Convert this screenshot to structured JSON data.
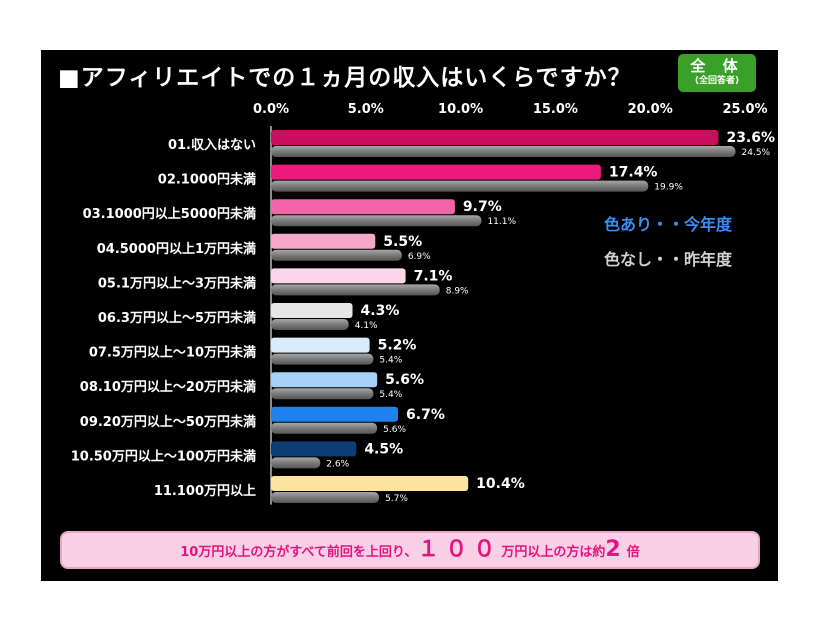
{
  "title": "■アフィリエイトでの１ヵ月の収入はいくらですか？",
  "badge": {
    "main": "全 体",
    "sub": "(全回答者)"
  },
  "legend": {
    "this_year": "色あり・・今年度",
    "last_year": "色なし・・昨年度"
  },
  "footer": {
    "part1": "10万円以上の方がすべて前回を上回り、",
    "part2": "１００",
    "part3": "万円以上の方は約",
    "part4": "2",
    "part5": "倍"
  },
  "chart_data": {
    "type": "bar",
    "orientation": "horizontal",
    "title": "■アフィリエイトでの１ヵ月の収入はいくらですか？",
    "xlim": [
      0,
      25
    ],
    "x_ticks": [
      "0.0%",
      "5.0%",
      "10.0%",
      "15.0%",
      "20.0%",
      "25.0%"
    ],
    "categories": [
      "01.収入はない",
      "02.1000円未満",
      "03.1000円以上5000円未満",
      "04.5000円以上1万円未満",
      "05.1万円以上～3万円未満",
      "06.3万円以上～5万円未満",
      "07.5万円以上～10万円未満",
      "08.10万円以上～20万円未満",
      "09.20万円以上～50万円未満",
      "10.50万円以上～100万円未満",
      "11.100万円以上"
    ],
    "series": [
      {
        "name": "今年度",
        "values": [
          23.6,
          17.4,
          9.7,
          5.5,
          7.1,
          4.3,
          5.2,
          5.6,
          6.7,
          4.5,
          10.4
        ],
        "labels": [
          "23.6%",
          "17.4%",
          "9.7%",
          "5.5%",
          "7.1%",
          "4.3%",
          "5.2%",
          "5.6%",
          "6.7%",
          "4.5%",
          "10.4%"
        ],
        "colors": [
          "#c8105e",
          "#ec1a7c",
          "#f265a8",
          "#f6a8cc",
          "#fbd6e8",
          "#e6e6e6",
          "#d8ecfc",
          "#a6d2f8",
          "#1d82ee",
          "#0a3e74",
          "#fbe49e"
        ]
      },
      {
        "name": "昨年度",
        "values": [
          24.5,
          19.9,
          11.1,
          6.9,
          8.9,
          4.1,
          5.4,
          5.4,
          5.6,
          2.6,
          5.7
        ],
        "labels": [
          "24.5%",
          "19.9%",
          "11.1%",
          "6.9%",
          "8.9%",
          "4.1%",
          "5.4%",
          "5.4%",
          "5.6%",
          "2.6%",
          "5.7%"
        ],
        "color": "#7a7a7a"
      }
    ],
    "grid": false
  }
}
